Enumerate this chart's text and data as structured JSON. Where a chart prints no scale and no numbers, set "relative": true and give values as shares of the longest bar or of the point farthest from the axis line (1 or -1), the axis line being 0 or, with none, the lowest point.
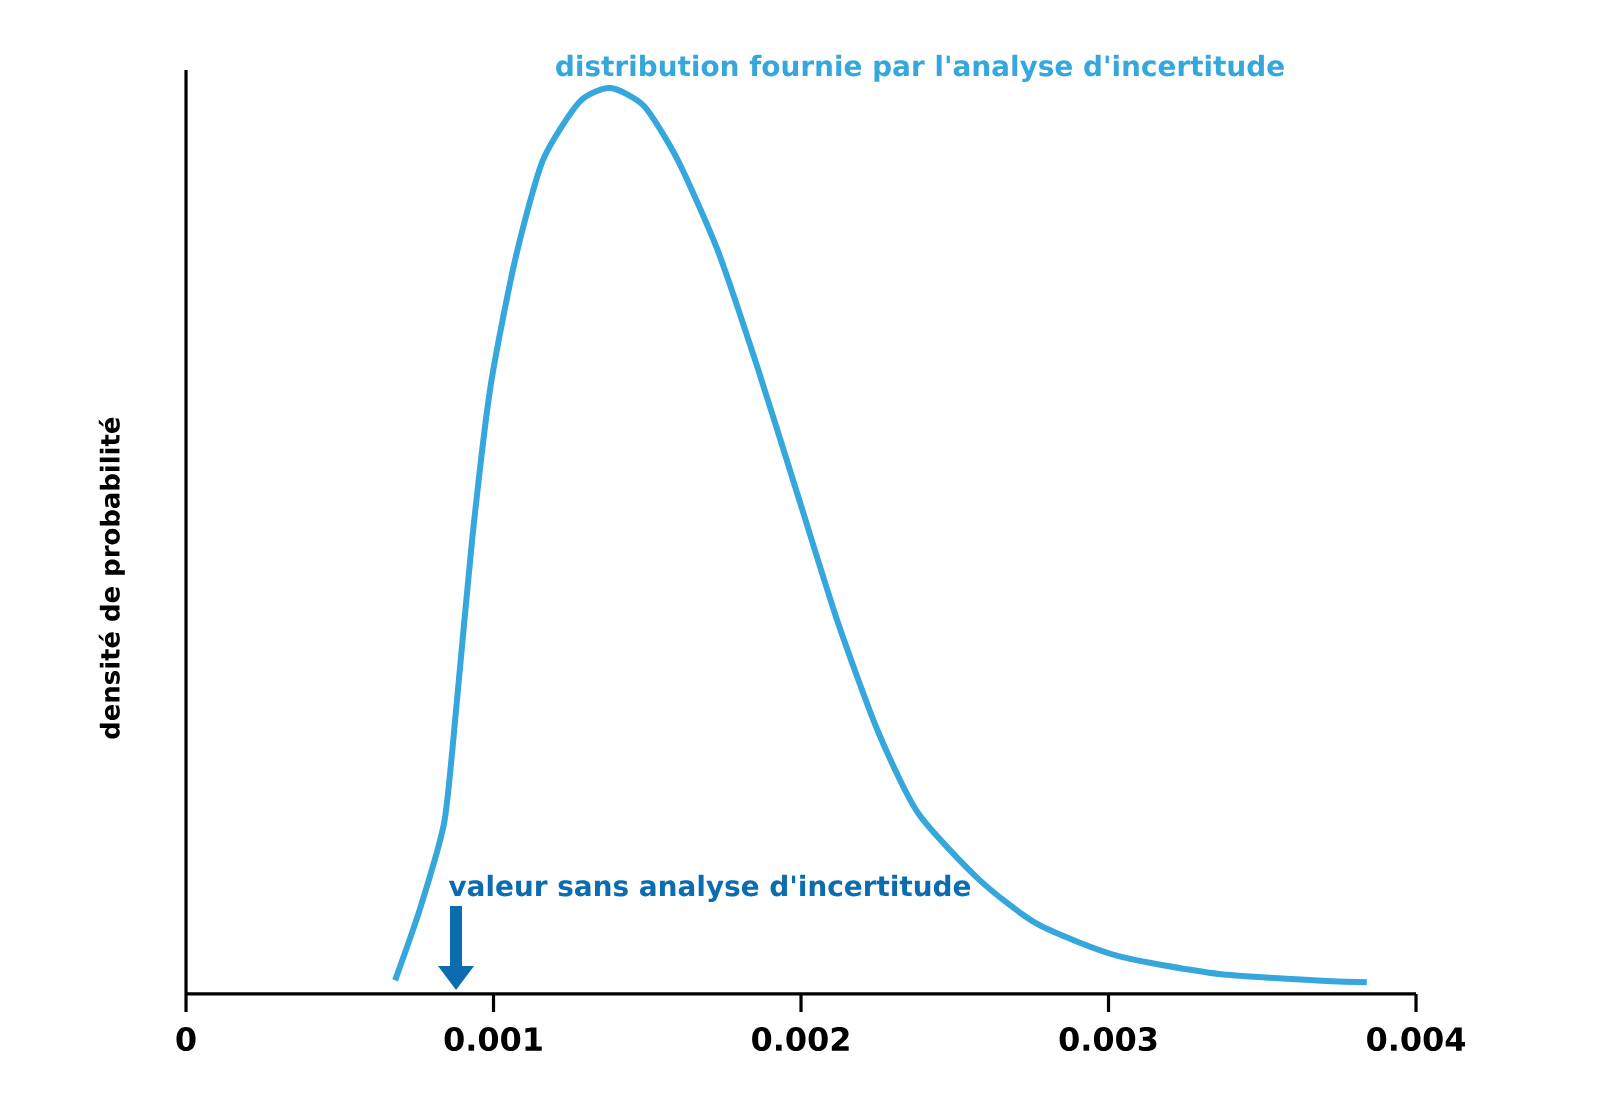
{
  "chart_data": {
    "type": "line",
    "relative": true,
    "ylabel": "densité de probabilité",
    "x": [
      0.00068,
      0.00076,
      0.00084,
      0.00088,
      0.00093,
      0.00099,
      0.00107,
      0.00116,
      0.00128,
      0.00138,
      0.00149,
      0.0016,
      0.00173,
      0.00186,
      0.00199,
      0.00212,
      0.00225,
      0.00238,
      0.00258,
      0.00277,
      0.00303,
      0.00336,
      0.00368,
      0.00384
    ],
    "series": [
      {
        "name": "distribution fournie par l'analyse d'incertitude",
        "color": "#35a7dc",
        "values": [
          0.015,
          0.093,
          0.19,
          0.32,
          0.5,
          0.67,
          0.81,
          0.92,
          0.985,
          1.0,
          0.98,
          0.92,
          0.82,
          0.69,
          0.55,
          0.41,
          0.29,
          0.2,
          0.126,
          0.077,
          0.042,
          0.022,
          0.015,
          0.013
        ]
      }
    ],
    "xlim": [
      0,
      0.004
    ],
    "xticks": [
      0,
      0.001,
      0.002,
      0.003,
      0.004
    ],
    "annotations": [
      "valeur sans analyse d'incertitude"
    ]
  }
}
